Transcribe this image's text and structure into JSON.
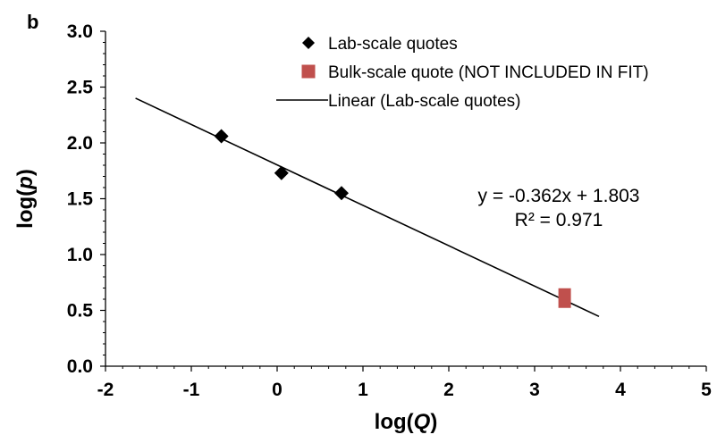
{
  "panel_label": "b",
  "chart_data": {
    "type": "scatter",
    "title": "",
    "xlabel": {
      "prefix": "log(",
      "var": "Q",
      "suffix": ")"
    },
    "ylabel": {
      "prefix": "log(",
      "var": "p",
      "suffix": ")"
    },
    "xlim": [
      -2,
      5
    ],
    "ylim": [
      0.0,
      3.0
    ],
    "x_ticks": [
      -2,
      -1,
      0,
      1,
      2,
      3,
      4,
      5
    ],
    "x_tick_labels": [
      "-2",
      "-1",
      "0",
      "1",
      "2",
      "3",
      "4",
      "5"
    ],
    "y_ticks": [
      0.0,
      0.5,
      1.0,
      1.5,
      2.0,
      2.5,
      3.0
    ],
    "y_tick_labels": [
      "0.0",
      "0.5",
      "1.0",
      "1.5",
      "2.0",
      "2.5",
      "3.0"
    ],
    "grid": false,
    "legend_position": "top-right",
    "series": [
      {
        "name": "Lab-scale quotes",
        "marker": "diamond",
        "color": "#000000",
        "points": [
          {
            "x": -0.65,
            "y": 2.06
          },
          {
            "x": 0.05,
            "y": 1.73
          },
          {
            "x": 0.75,
            "y": 1.55
          }
        ]
      },
      {
        "name": "Bulk-scale quote (NOT INCLUDED IN FIT)",
        "marker": "square",
        "color": "#c0504d",
        "points": [
          {
            "x": 3.35,
            "y": 0.61
          }
        ]
      }
    ],
    "trendline": {
      "name": "Linear (Lab-scale quotes)",
      "color": "#000000",
      "slope": -0.362,
      "intercept": 1.803,
      "x_start": -1.65,
      "x_end": 3.75
    },
    "annotations": {
      "equation": "y = -0.362x + 1.803",
      "r_squared": "R² = 0.971"
    }
  }
}
